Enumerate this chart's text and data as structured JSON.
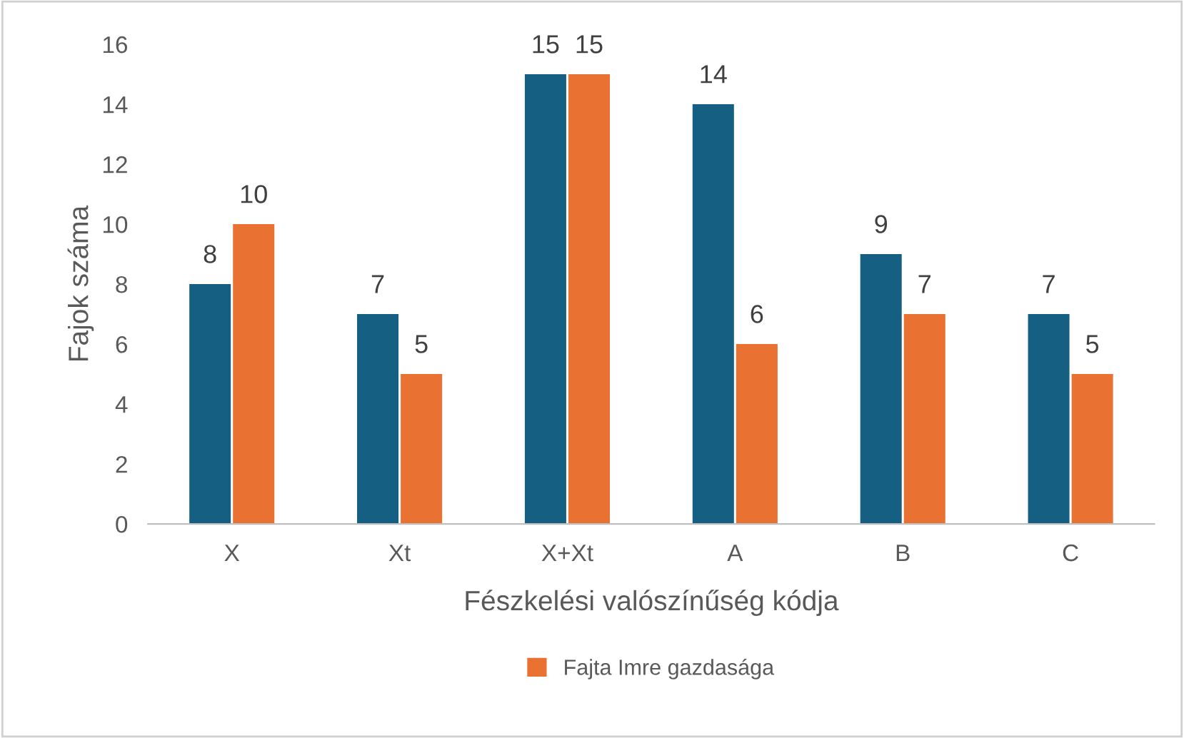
{
  "chart_data": {
    "type": "bar",
    "xlabel": "Fészkelési valószínűség kódja",
    "ylabel": "Fajok száma",
    "categories": [
      "X",
      "Xt",
      "X+Xt",
      "A",
      "B",
      "C"
    ],
    "series": [
      {
        "color": "#156082",
        "values": [
          8,
          7,
          15,
          14,
          9,
          7
        ]
      },
      {
        "name": "Fajta Imre gazdasága",
        "color": "#e97132",
        "values": [
          10,
          5,
          15,
          6,
          7,
          5
        ]
      }
    ],
    "ylim": [
      0,
      16
    ],
    "yticks": [
      0,
      2,
      4,
      6,
      8,
      10,
      12,
      14,
      16
    ],
    "grid": false,
    "legend": "bottom",
    "data_labels": true
  }
}
